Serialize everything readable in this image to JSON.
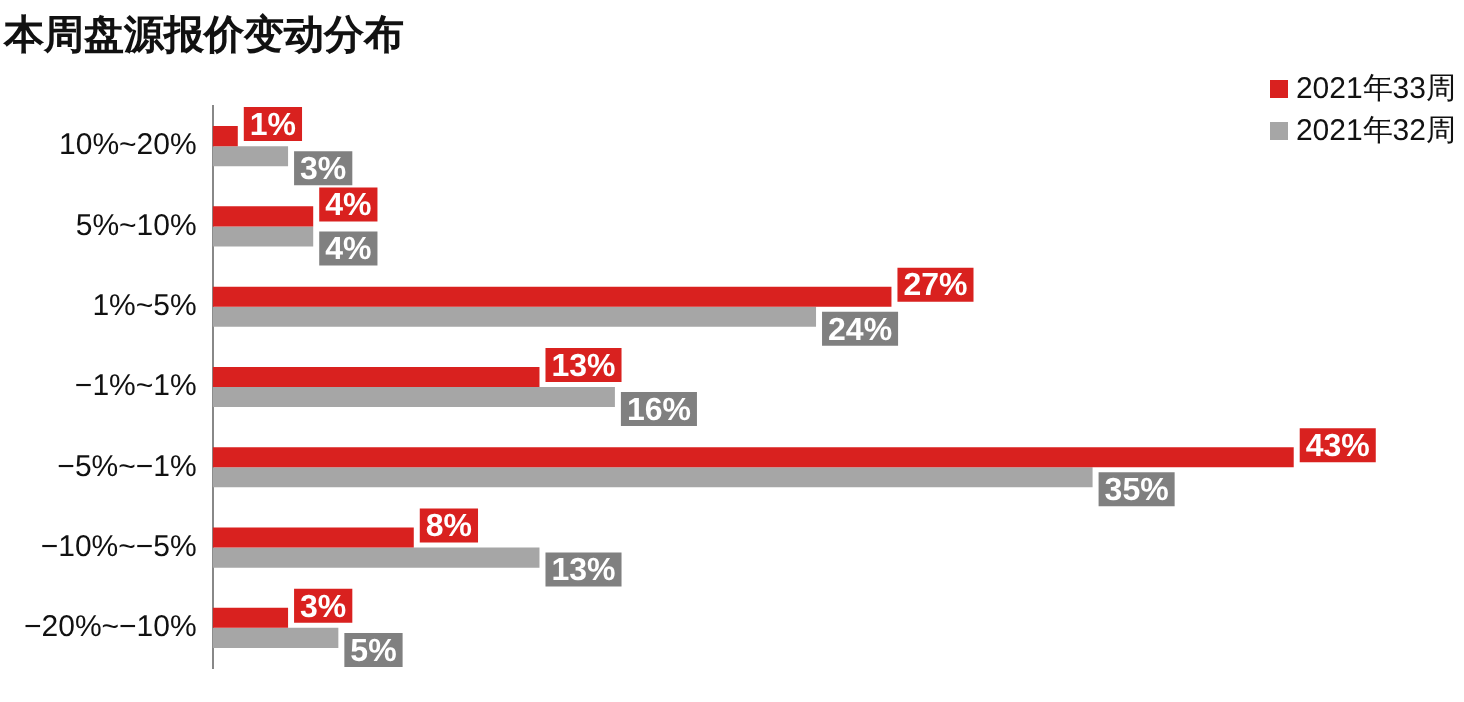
{
  "chart_data": {
    "type": "bar",
    "orientation": "horizontal",
    "title": "本周盘源报价变动分布",
    "categories": [
      "10%~20%",
      "5%~10%",
      "1%~5%",
      "−1%~1%",
      "−5%~−1%",
      "−10%~−5%",
      "−20%~−10%"
    ],
    "series": [
      {
        "name": "2021年33周",
        "color": "#d9211f",
        "values": [
          1,
          4,
          27,
          13,
          43,
          8,
          3
        ],
        "value_labels": [
          "1%",
          "4%",
          "27%",
          "13%",
          "43%",
          "8%",
          "3%"
        ]
      },
      {
        "name": "2021年32周",
        "color": "#a6a6a6",
        "values": [
          3,
          4,
          24,
          16,
          35,
          13,
          5
        ],
        "value_labels": [
          "3%",
          "4%",
          "24%",
          "16%",
          "35%",
          "13%",
          "5%"
        ]
      }
    ],
    "data_labels": true,
    "legend": "top right",
    "grid": false
  }
}
